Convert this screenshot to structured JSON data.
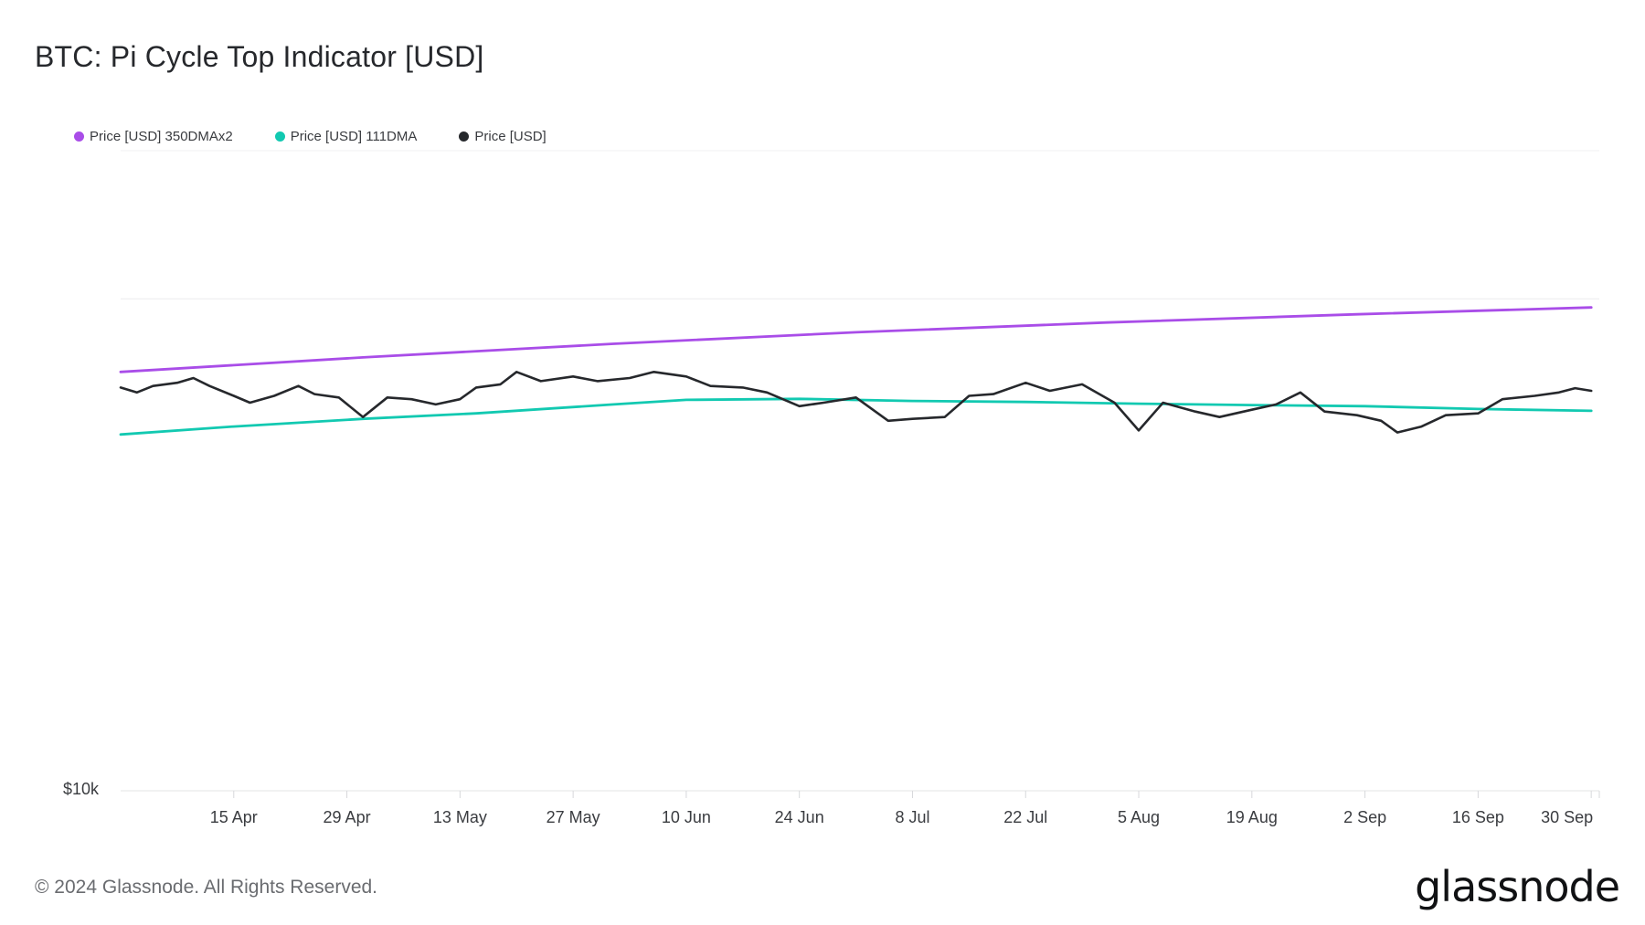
{
  "title": "BTC: Pi Cycle Top Indicator [USD]",
  "footer": "© 2024 Glassnode. All Rights Reserved.",
  "brand": "glassnode",
  "chart_data": {
    "type": "line",
    "title": "BTC: Pi Cycle Top Indicator [USD]",
    "y_scale": "log",
    "ylim": [
      10000,
      200000
    ],
    "y_ticks": [
      {
        "value": 10000,
        "label": "$10k"
      }
    ],
    "xlim": [
      "2024-04-01",
      "2024-10-01"
    ],
    "x_ticks": [
      {
        "date": "2024-04-15",
        "label": "15 Apr"
      },
      {
        "date": "2024-04-29",
        "label": "29 Apr"
      },
      {
        "date": "2024-05-13",
        "label": "13 May"
      },
      {
        "date": "2024-05-27",
        "label": "27 May"
      },
      {
        "date": "2024-06-10",
        "label": "10 Jun"
      },
      {
        "date": "2024-06-24",
        "label": "24 Jun"
      },
      {
        "date": "2024-07-08",
        "label": "8 Jul"
      },
      {
        "date": "2024-07-22",
        "label": "22 Jul"
      },
      {
        "date": "2024-08-05",
        "label": "5 Aug"
      },
      {
        "date": "2024-08-19",
        "label": "19 Aug"
      },
      {
        "date": "2024-09-02",
        "label": "2 Sep"
      },
      {
        "date": "2024-09-16",
        "label": "16 Sep"
      },
      {
        "date": "2024-09-30",
        "label": "30 Sep"
      }
    ],
    "grid": true,
    "legend_position": "top-left",
    "series": [
      {
        "name": "Price [USD] 350DMAx2",
        "color": "#a94de8",
        "points": [
          [
            "2024-04-01",
            71000
          ],
          [
            "2024-05-01",
            76000
          ],
          [
            "2024-06-01",
            81000
          ],
          [
            "2024-07-01",
            85500
          ],
          [
            "2024-08-01",
            89500
          ],
          [
            "2024-09-01",
            93000
          ],
          [
            "2024-09-30",
            96000
          ]
        ]
      },
      {
        "name": "Price [USD] 111DMA",
        "color": "#12c9b1",
        "points": [
          [
            "2024-04-01",
            53000
          ],
          [
            "2024-04-15",
            55000
          ],
          [
            "2024-05-01",
            57000
          ],
          [
            "2024-05-15",
            58500
          ],
          [
            "2024-06-01",
            61000
          ],
          [
            "2024-06-10",
            62300
          ],
          [
            "2024-06-24",
            62600
          ],
          [
            "2024-07-08",
            62000
          ],
          [
            "2024-07-22",
            61700
          ],
          [
            "2024-08-05",
            61200
          ],
          [
            "2024-08-19",
            60800
          ],
          [
            "2024-09-02",
            60500
          ],
          [
            "2024-09-16",
            59700
          ],
          [
            "2024-09-30",
            59200
          ]
        ]
      },
      {
        "name": "Price [USD]",
        "color": "#26282c",
        "points": [
          [
            "2024-04-01",
            66000
          ],
          [
            "2024-04-03",
            64500
          ],
          [
            "2024-04-05",
            66500
          ],
          [
            "2024-04-08",
            67500
          ],
          [
            "2024-04-10",
            69000
          ],
          [
            "2024-04-12",
            66500
          ],
          [
            "2024-04-15",
            63500
          ],
          [
            "2024-04-17",
            61500
          ],
          [
            "2024-04-20",
            63500
          ],
          [
            "2024-04-23",
            66500
          ],
          [
            "2024-04-25",
            64000
          ],
          [
            "2024-04-28",
            63000
          ],
          [
            "2024-05-01",
            57500
          ],
          [
            "2024-05-04",
            63000
          ],
          [
            "2024-05-07",
            62500
          ],
          [
            "2024-05-10",
            61000
          ],
          [
            "2024-05-13",
            62500
          ],
          [
            "2024-05-15",
            66000
          ],
          [
            "2024-05-18",
            67000
          ],
          [
            "2024-05-20",
            71000
          ],
          [
            "2024-05-23",
            68000
          ],
          [
            "2024-05-27",
            69500
          ],
          [
            "2024-05-30",
            68000
          ],
          [
            "2024-06-03",
            69000
          ],
          [
            "2024-06-06",
            71000
          ],
          [
            "2024-06-10",
            69500
          ],
          [
            "2024-06-13",
            66500
          ],
          [
            "2024-06-17",
            66000
          ],
          [
            "2024-06-20",
            64500
          ],
          [
            "2024-06-24",
            60500
          ],
          [
            "2024-06-27",
            61500
          ],
          [
            "2024-07-01",
            63000
          ],
          [
            "2024-07-05",
            56500
          ],
          [
            "2024-07-08",
            57000
          ],
          [
            "2024-07-12",
            57500
          ],
          [
            "2024-07-15",
            63500
          ],
          [
            "2024-07-18",
            64000
          ],
          [
            "2024-07-22",
            67500
          ],
          [
            "2024-07-25",
            65000
          ],
          [
            "2024-07-29",
            67000
          ],
          [
            "2024-08-02",
            61500
          ],
          [
            "2024-08-05",
            54000
          ],
          [
            "2024-08-08",
            61500
          ],
          [
            "2024-08-12",
            59000
          ],
          [
            "2024-08-15",
            57500
          ],
          [
            "2024-08-19",
            59500
          ],
          [
            "2024-08-22",
            61000
          ],
          [
            "2024-08-25",
            64500
          ],
          [
            "2024-08-28",
            59000
          ],
          [
            "2024-09-01",
            58000
          ],
          [
            "2024-09-04",
            56500
          ],
          [
            "2024-09-06",
            53500
          ],
          [
            "2024-09-09",
            55000
          ],
          [
            "2024-09-12",
            58000
          ],
          [
            "2024-09-16",
            58500
          ],
          [
            "2024-09-19",
            62500
          ],
          [
            "2024-09-23",
            63500
          ],
          [
            "2024-09-26",
            64500
          ],
          [
            "2024-09-28",
            65800
          ],
          [
            "2024-09-30",
            65000
          ]
        ]
      }
    ]
  }
}
